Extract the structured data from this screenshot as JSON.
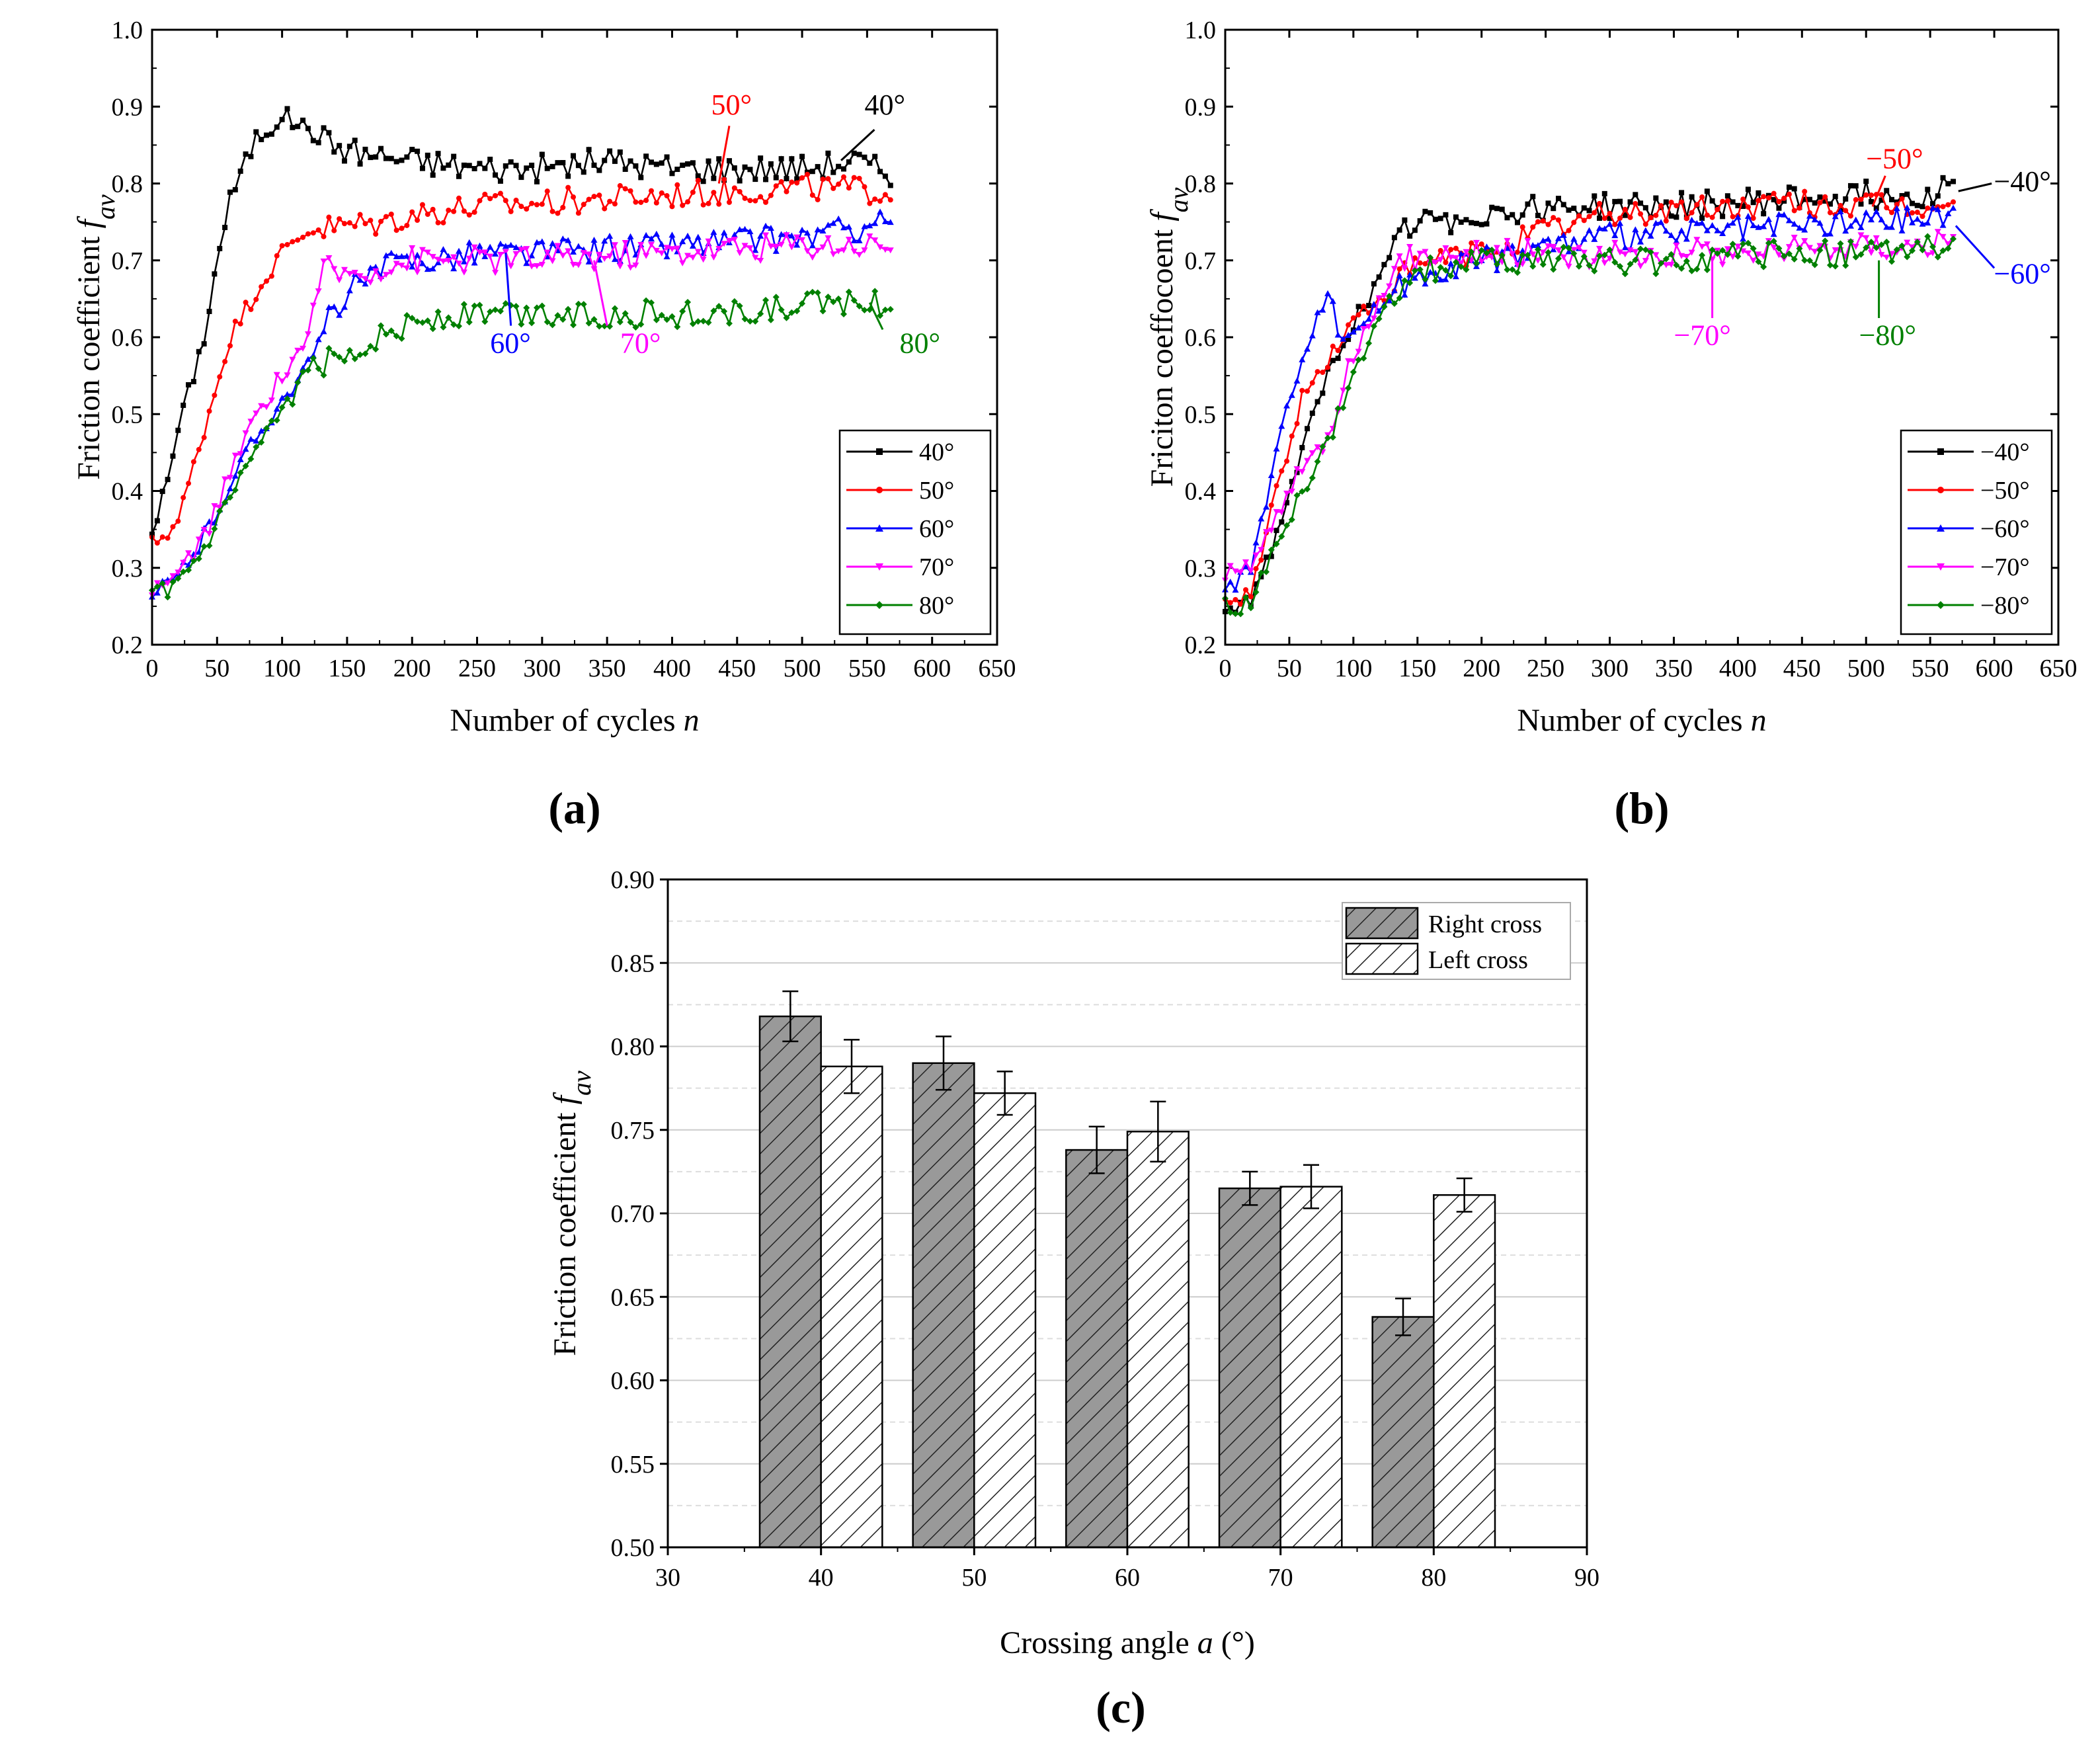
{
  "chart_data": [
    {
      "type": "line",
      "panel": "a",
      "xlabel_prefix": "Number of cycles ",
      "xlabel_var": "n",
      "ylabel_prefix": "Friction coefficient ",
      "ylabel_var": "f",
      "ylabel_sub": "av",
      "xlim": [
        0,
        650
      ],
      "ylim": [
        0.2,
        1.0
      ],
      "x_ticks": [
        "0",
        "50",
        "100",
        "150",
        "200",
        "250",
        "300",
        "350",
        "400",
        "450",
        "500",
        "550",
        "600",
        "650"
      ],
      "y_ticks": [
        "0.2",
        "0.3",
        "0.4",
        "0.5",
        "0.6",
        "0.7",
        "0.8",
        "0.9",
        "1.0"
      ],
      "legend_position": "bottom-right",
      "series": [
        {
          "name": "40°",
          "color": "#000000",
          "marker": "square",
          "anchors": [
            [
              0,
              0.35
            ],
            [
              10,
              0.4
            ],
            [
              20,
              0.48
            ],
            [
              30,
              0.54
            ],
            [
              40,
              0.6
            ],
            [
              50,
              0.7
            ],
            [
              60,
              0.78
            ],
            [
              70,
              0.82
            ],
            [
              80,
              0.86
            ],
            [
              90,
              0.87
            ],
            [
              100,
              0.89
            ],
            [
              110,
              0.88
            ],
            [
              120,
              0.87
            ],
            [
              140,
              0.85
            ],
            [
              160,
              0.84
            ],
            [
              200,
              0.83
            ],
            [
              250,
              0.82
            ],
            [
              300,
              0.82
            ],
            [
              350,
              0.83
            ],
            [
              400,
              0.82
            ],
            [
              450,
              0.82
            ],
            [
              500,
              0.82
            ],
            [
              540,
              0.83
            ],
            [
              570,
              0.81
            ]
          ]
        },
        {
          "name": "50°",
          "color": "#ff0000",
          "marker": "circle",
          "anchors": [
            [
              0,
              0.33
            ],
            [
              20,
              0.36
            ],
            [
              40,
              0.48
            ],
            [
              60,
              0.6
            ],
            [
              80,
              0.66
            ],
            [
              100,
              0.71
            ],
            [
              120,
              0.74
            ],
            [
              150,
              0.745
            ],
            [
              180,
              0.75
            ],
            [
              200,
              0.76
            ],
            [
              250,
              0.77
            ],
            [
              300,
              0.775
            ],
            [
              350,
              0.78
            ],
            [
              400,
              0.785
            ],
            [
              450,
              0.79
            ],
            [
              500,
              0.795
            ],
            [
              570,
              0.79
            ]
          ]
        },
        {
          "name": "60°",
          "color": "#0000ff",
          "marker": "triangle-up",
          "anchors": [
            [
              0,
              0.26
            ],
            [
              20,
              0.29
            ],
            [
              40,
              0.34
            ],
            [
              60,
              0.41
            ],
            [
              80,
              0.47
            ],
            [
              100,
              0.52
            ],
            [
              120,
              0.56
            ],
            [
              140,
              0.64
            ],
            [
              160,
              0.67
            ],
            [
              180,
              0.69
            ],
            [
              200,
              0.7
            ],
            [
              250,
              0.71
            ],
            [
              300,
              0.71
            ],
            [
              350,
              0.715
            ],
            [
              400,
              0.72
            ],
            [
              450,
              0.725
            ],
            [
              500,
              0.73
            ],
            [
              540,
              0.74
            ],
            [
              570,
              0.76
            ]
          ]
        },
        {
          "name": "70°",
          "color": "#ff00ff",
          "marker": "triangle-down",
          "anchors": [
            [
              0,
              0.27
            ],
            [
              20,
              0.29
            ],
            [
              40,
              0.34
            ],
            [
              60,
              0.42
            ],
            [
              80,
              0.5
            ],
            [
              100,
              0.55
            ],
            [
              120,
              0.6
            ],
            [
              130,
              0.69
            ],
            [
              150,
              0.68
            ],
            [
              200,
              0.7
            ],
            [
              250,
              0.7
            ],
            [
              300,
              0.7
            ],
            [
              350,
              0.705
            ],
            [
              400,
              0.71
            ],
            [
              450,
              0.715
            ],
            [
              500,
              0.72
            ],
            [
              570,
              0.72
            ]
          ]
        },
        {
          "name": "80°",
          "color": "#008000",
          "marker": "diamond",
          "anchors": [
            [
              0,
              0.26
            ],
            [
              20,
              0.28
            ],
            [
              40,
              0.32
            ],
            [
              60,
              0.39
            ],
            [
              80,
              0.45
            ],
            [
              100,
              0.5
            ],
            [
              120,
              0.56
            ],
            [
              140,
              0.57
            ],
            [
              160,
              0.59
            ],
            [
              200,
              0.62
            ],
            [
              250,
              0.63
            ],
            [
              300,
              0.63
            ],
            [
              350,
              0.63
            ],
            [
              400,
              0.63
            ],
            [
              450,
              0.63
            ],
            [
              500,
              0.64
            ],
            [
              540,
              0.65
            ],
            [
              570,
              0.64
            ]
          ]
        }
      ],
      "annotations": [
        {
          "text": "40°",
          "color": "#000000",
          "x": 548,
          "y": 0.89
        },
        {
          "text": "50°",
          "color": "#ff0000",
          "x": 430,
          "y": 0.89
        },
        {
          "text": "60°",
          "color": "#0000ff",
          "x": 260,
          "y": 0.58
        },
        {
          "text": "70°",
          "color": "#ff00ff",
          "x": 360,
          "y": 0.58
        },
        {
          "text": "80°",
          "color": "#008000",
          "x": 575,
          "y": 0.58
        }
      ],
      "label": "(a)"
    },
    {
      "type": "line",
      "panel": "b",
      "xlabel_prefix": "Number of cycles ",
      "xlabel_var": "n",
      "ylabel_prefix": "Friciton coeffocoent ",
      "ylabel_var": "f",
      "ylabel_sub": "av",
      "xlim": [
        0,
        650
      ],
      "ylim": [
        0.2,
        1.0
      ],
      "x_ticks": [
        "0",
        "50",
        "100",
        "150",
        "200",
        "250",
        "300",
        "350",
        "400",
        "450",
        "500",
        "550",
        "600",
        "650"
      ],
      "y_ticks": [
        "0.2",
        "0.3",
        "0.4",
        "0.5",
        "0.6",
        "0.7",
        "0.8",
        "0.9",
        "1.0"
      ],
      "legend_position": "bottom-right",
      "series": [
        {
          "name": "−40°",
          "color": "#000000",
          "marker": "square",
          "anchors": [
            [
              0,
              0.25
            ],
            [
              20,
              0.26
            ],
            [
              40,
              0.34
            ],
            [
              50,
              0.4
            ],
            [
              60,
              0.45
            ],
            [
              80,
              0.55
            ],
            [
              100,
              0.62
            ],
            [
              120,
              0.67
            ],
            [
              140,
              0.74
            ],
            [
              160,
              0.75
            ],
            [
              200,
              0.76
            ],
            [
              250,
              0.77
            ],
            [
              300,
              0.77
            ],
            [
              350,
              0.77
            ],
            [
              400,
              0.775
            ],
            [
              450,
              0.78
            ],
            [
              500,
              0.785
            ],
            [
              540,
              0.785
            ],
            [
              570,
              0.8
            ]
          ]
        },
        {
          "name": "−50°",
          "color": "#ff0000",
          "marker": "circle",
          "anchors": [
            [
              0,
              0.25
            ],
            [
              20,
              0.27
            ],
            [
              40,
              0.4
            ],
            [
              60,
              0.52
            ],
            [
              80,
              0.57
            ],
            [
              100,
              0.62
            ],
            [
              120,
              0.65
            ],
            [
              140,
              0.68
            ],
            [
              160,
              0.7
            ],
            [
              200,
              0.71
            ],
            [
              250,
              0.74
            ],
            [
              300,
              0.76
            ],
            [
              350,
              0.765
            ],
            [
              400,
              0.77
            ],
            [
              450,
              0.775
            ],
            [
              500,
              0.77
            ],
            [
              540,
              0.77
            ],
            [
              570,
              0.77
            ]
          ]
        },
        {
          "name": "−60°",
          "color": "#0000ff",
          "marker": "triangle-up",
          "anchors": [
            [
              0,
              0.27
            ],
            [
              20,
              0.3
            ],
            [
              40,
              0.45
            ],
            [
              60,
              0.58
            ],
            [
              80,
              0.66
            ],
            [
              90,
              0.6
            ],
            [
              100,
              0.61
            ],
            [
              120,
              0.64
            ],
            [
              140,
              0.67
            ],
            [
              160,
              0.69
            ],
            [
              200,
              0.7
            ],
            [
              250,
              0.72
            ],
            [
              300,
              0.73
            ],
            [
              350,
              0.735
            ],
            [
              400,
              0.74
            ],
            [
              450,
              0.745
            ],
            [
              500,
              0.75
            ],
            [
              540,
              0.755
            ],
            [
              570,
              0.76
            ]
          ]
        },
        {
          "name": "−70°",
          "color": "#ff00ff",
          "marker": "triangle-down",
          "anchors": [
            [
              0,
              0.29
            ],
            [
              20,
              0.3
            ],
            [
              40,
              0.37
            ],
            [
              60,
              0.43
            ],
            [
              80,
              0.47
            ],
            [
              100,
              0.58
            ],
            [
              120,
              0.64
            ],
            [
              140,
              0.7
            ],
            [
              160,
              0.71
            ],
            [
              200,
              0.71
            ],
            [
              250,
              0.71
            ],
            [
              300,
              0.705
            ],
            [
              350,
              0.71
            ],
            [
              400,
              0.71
            ],
            [
              450,
              0.715
            ],
            [
              500,
              0.72
            ],
            [
              570,
              0.72
            ]
          ]
        },
        {
          "name": "−80°",
          "color": "#008000",
          "marker": "diamond",
          "anchors": [
            [
              0,
              0.25
            ],
            [
              20,
              0.25
            ],
            [
              40,
              0.33
            ],
            [
              60,
              0.4
            ],
            [
              80,
              0.46
            ],
            [
              100,
              0.55
            ],
            [
              120,
              0.62
            ],
            [
              140,
              0.68
            ],
            [
              160,
              0.69
            ],
            [
              200,
              0.7
            ],
            [
              250,
              0.7
            ],
            [
              300,
              0.7
            ],
            [
              350,
              0.7
            ],
            [
              400,
              0.705
            ],
            [
              450,
              0.71
            ],
            [
              500,
              0.71
            ],
            [
              570,
              0.715
            ]
          ]
        }
      ],
      "annotations": [
        {
          "text": "−40°",
          "color": "#000000",
          "x": 610,
          "y": 0.79
        },
        {
          "text": "−50°",
          "color": "#ff0000",
          "x": 500,
          "y": 0.82
        },
        {
          "text": "−60°",
          "color": "#0000ff",
          "x": 610,
          "y": 0.67
        },
        {
          "text": "−70°",
          "color": "#ff00ff",
          "x": 350,
          "y": 0.59
        },
        {
          "text": "−80°",
          "color": "#008000",
          "x": 510,
          "y": 0.59
        }
      ],
      "label": "(b)"
    },
    {
      "type": "bar",
      "panel": "c",
      "xlabel_prefix": "Crossing angle ",
      "xlabel_var": "a",
      "xlabel_suffix": " (°)",
      "ylabel_prefix": "Friction coefficient ",
      "ylabel_var": "f",
      "ylabel_sub": "av",
      "xlim": [
        30,
        90
      ],
      "ylim": [
        0.5,
        0.9
      ],
      "x_ticks": [
        "30",
        "40",
        "50",
        "60",
        "70",
        "80",
        "90"
      ],
      "y_ticks": [
        "0.50",
        "0.55",
        "0.60",
        "0.65",
        "0.70",
        "0.75",
        "0.80",
        "0.85",
        "0.90"
      ],
      "categories": [
        40,
        50,
        60,
        70,
        80
      ],
      "series": [
        {
          "name": "Right cross",
          "fill": "#999999",
          "values": [
            0.818,
            0.79,
            0.738,
            0.715,
            0.638
          ],
          "errors": [
            0.015,
            0.016,
            0.014,
            0.01,
            0.011
          ]
        },
        {
          "name": "Left cross",
          "fill": "#ffffff",
          "values": [
            0.788,
            0.772,
            0.749,
            0.716,
            0.711
          ],
          "errors": [
            0.016,
            0.013,
            0.018,
            0.013,
            0.01
          ]
        }
      ],
      "legend_position": "top-right",
      "label": "(c)"
    }
  ]
}
